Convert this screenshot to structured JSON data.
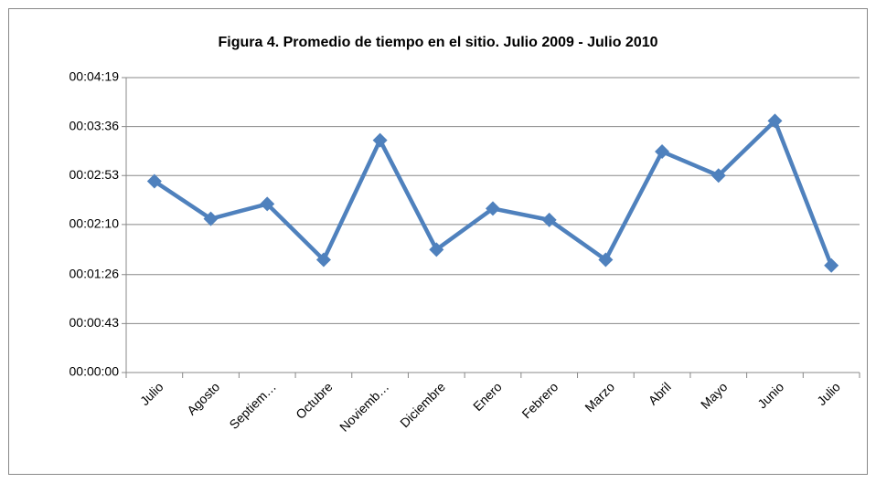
{
  "chart_data": {
    "type": "line",
    "title": "Figura 4. Promedio de tiempo en el sitio. Julio 2009 - Julio 2010",
    "categories": [
      "Julio",
      "Agosto",
      "Septiem…",
      "Octubre",
      "Noviemb…",
      "Diciembre",
      "Enero",
      "Febrero",
      "Marzo",
      "Abril",
      "Mayo",
      "Junio",
      "Julio"
    ],
    "series": [
      {
        "color": "#4f81bd",
        "values": [
          168,
          135,
          148,
          99,
          204,
          108,
          144,
          134,
          99,
          194,
          173,
          221,
          94
        ]
      }
    ],
    "ylim": [
      0,
      259
    ],
    "yticks": [
      {
        "value": 0,
        "label": "00:00:00"
      },
      {
        "value": 43,
        "label": "00:00:43"
      },
      {
        "value": 86,
        "label": "00:01:26"
      },
      {
        "value": 130,
        "label": "00:02:10"
      },
      {
        "value": 173,
        "label": "00:02:53"
      },
      {
        "value": 216,
        "label": "00:03:36"
      },
      {
        "value": 259,
        "label": "00:04:19"
      }
    ],
    "grid": true
  }
}
